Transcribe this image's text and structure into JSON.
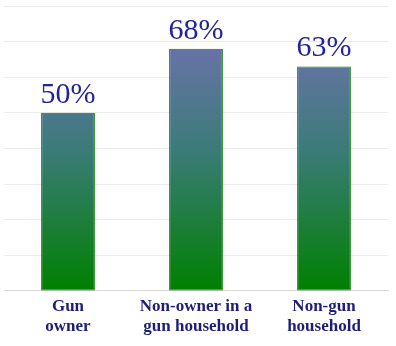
{
  "chart_data": {
    "type": "bar",
    "categories": [
      "Gun owner",
      "Non-owner in a gun household",
      "Non-gun household"
    ],
    "values": [
      50,
      68,
      63
    ],
    "value_labels": [
      "50%",
      "68%",
      "63%"
    ],
    "data_labels": true,
    "color": "#7a6fb8",
    "ylim": [
      0,
      80
    ],
    "yticks": [
      0,
      10,
      20,
      30,
      40,
      50,
      60,
      70,
      80
    ],
    "grid": true,
    "tick_labels": "x"
  }
}
